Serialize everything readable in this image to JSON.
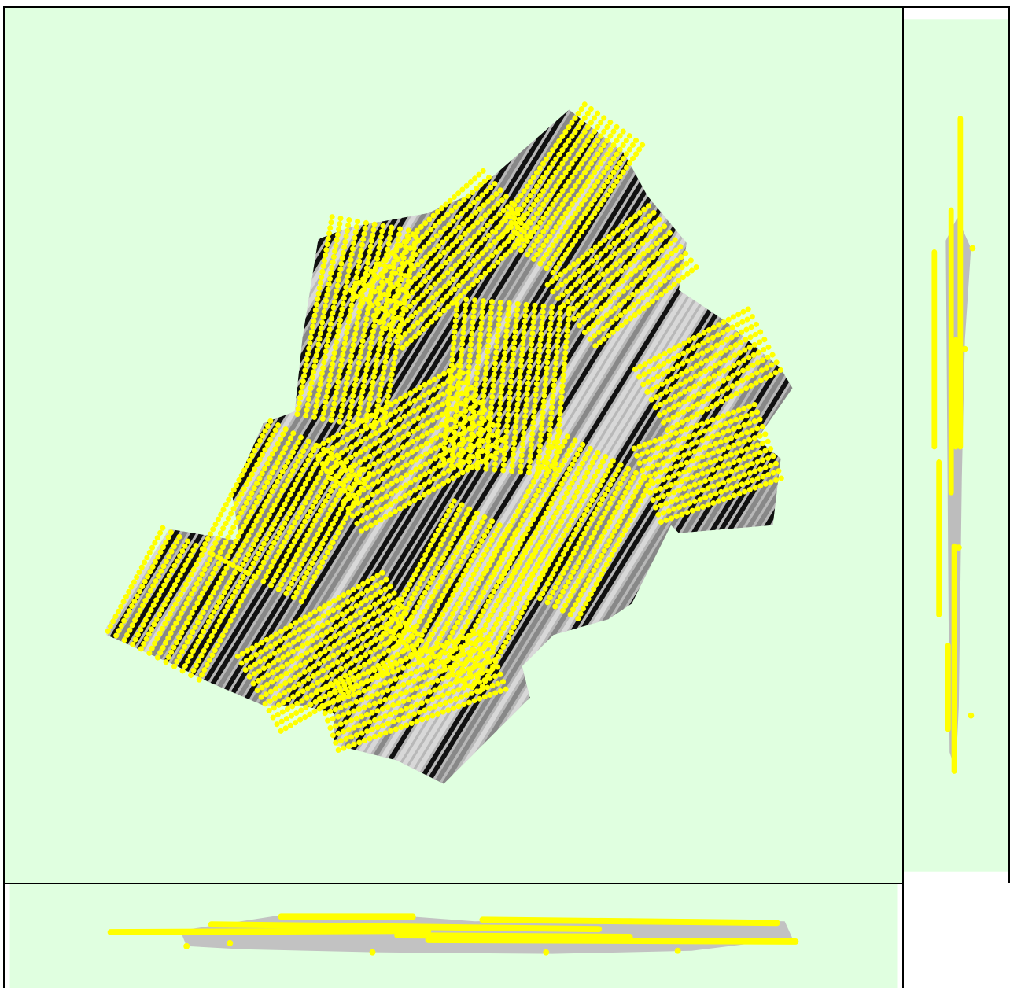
{
  "colors": {
    "panel_background": "#e0ffe0",
    "point_color": "#ffff00",
    "coverage_dark": "#111111",
    "coverage_mid": "#888888",
    "coverage_light": "#d8d8d8",
    "border": "#000000"
  },
  "views": {
    "main": "top-view",
    "side": "side-view-yz",
    "bottom": "front-view-xz"
  },
  "legend": {}
}
